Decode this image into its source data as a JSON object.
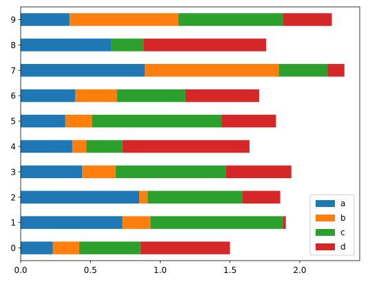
{
  "chart_data": {
    "type": "bar",
    "orientation": "horizontal",
    "stacked": true,
    "categories": [
      "0",
      "1",
      "2",
      "3",
      "4",
      "5",
      "6",
      "7",
      "8",
      "9"
    ],
    "series": [
      {
        "name": "a",
        "color": "#1f77b4",
        "values": [
          0.23,
          0.73,
          0.85,
          0.44,
          0.37,
          0.32,
          0.39,
          0.89,
          0.65,
          0.35
        ]
      },
      {
        "name": "b",
        "color": "#ff7f0e",
        "values": [
          0.19,
          0.2,
          0.06,
          0.24,
          0.1,
          0.19,
          0.3,
          0.96,
          0.0,
          0.78
        ]
      },
      {
        "name": "c",
        "color": "#2ca02c",
        "values": [
          0.44,
          0.95,
          0.68,
          0.79,
          0.26,
          0.93,
          0.49,
          0.35,
          0.23,
          0.75
        ]
      },
      {
        "name": "d",
        "color": "#d62728",
        "values": [
          0.64,
          0.02,
          0.27,
          0.47,
          0.91,
          0.39,
          0.53,
          0.12,
          0.88,
          0.35
        ]
      }
    ],
    "xlim": [
      0,
      2.43
    ],
    "x_ticks": [
      "0.0",
      "0.5",
      "1.0",
      "1.5",
      "2.0"
    ],
    "x_tick_values": [
      0,
      0.5,
      1.0,
      1.5,
      2.0
    ],
    "grid": false,
    "legend_position": "lower right"
  }
}
